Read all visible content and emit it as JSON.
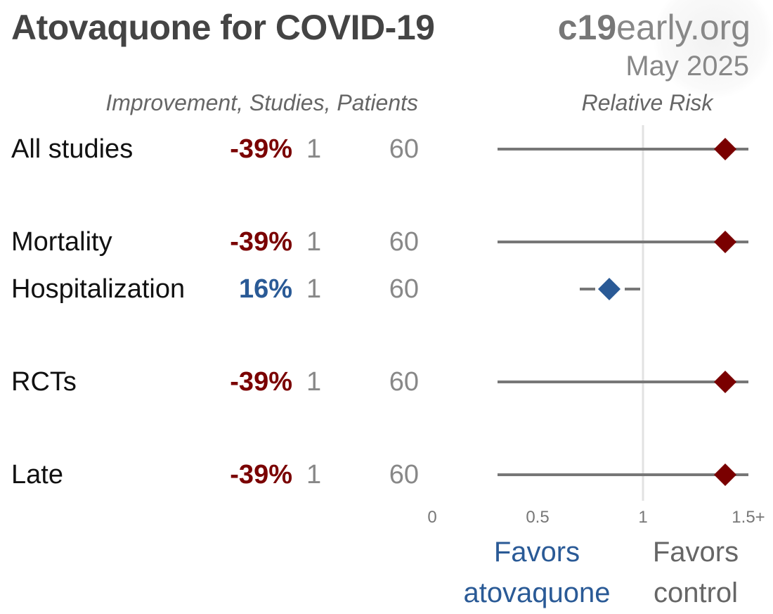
{
  "title": "Atovaquone for COVID-19",
  "brand": {
    "bold": "c19",
    "rest": "early.org"
  },
  "date": "May 2025",
  "headers": {
    "left": "Improvement, Studies, Patients",
    "right": "Relative Risk"
  },
  "colors": {
    "harm": "#7a0000",
    "benefit": "#2a5a96",
    "line": "#777777",
    "refline": "#e2e2e2"
  },
  "axis": {
    "ticks": [
      "0",
      "0.5",
      "1",
      "1.5+"
    ]
  },
  "favors": {
    "left": [
      "Favors",
      "atovaquone"
    ],
    "right": [
      "Favors",
      "control"
    ]
  },
  "chart_data": {
    "type": "forest",
    "xlabel": "Relative Risk",
    "xlim": [
      0,
      1.5
    ],
    "reference_line": 1,
    "rows": [
      {
        "label": "All studies",
        "improvement": "-39%",
        "studies": "1",
        "patients": "60",
        "rr": 1.39,
        "ci": [
          0.31,
          1.5
        ],
        "direction": "harm"
      },
      {
        "label": "Mortality",
        "improvement": "-39%",
        "studies": "1",
        "patients": "60",
        "rr": 1.39,
        "ci": [
          0.31,
          1.5
        ],
        "direction": "harm"
      },
      {
        "label": "Hospitalization",
        "improvement": "16%",
        "studies": "1",
        "patients": "60",
        "rr": 0.84,
        "ci": [
          0.7,
          1.01
        ],
        "direction": "benefit"
      },
      {
        "label": "RCTs",
        "improvement": "-39%",
        "studies": "1",
        "patients": "60",
        "rr": 1.39,
        "ci": [
          0.31,
          1.5
        ],
        "direction": "harm"
      },
      {
        "label": "Late",
        "improvement": "-39%",
        "studies": "1",
        "patients": "60",
        "rr": 1.39,
        "ci": [
          0.31,
          1.5
        ],
        "direction": "harm"
      }
    ]
  }
}
